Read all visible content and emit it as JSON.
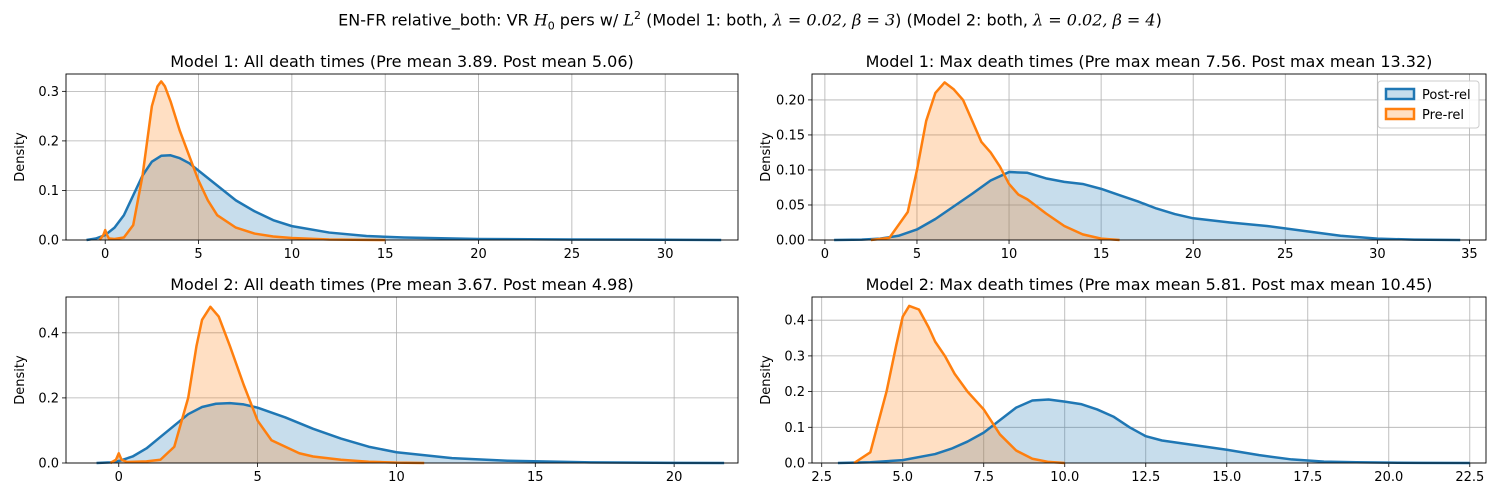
{
  "figure": {
    "suptitle_prefix": "EN-FR relative_both: VR ",
    "suptitle_h": "H",
    "suptitle_h_sub": "0",
    "suptitle_mid": " pers w/ ",
    "suptitle_l": "L",
    "suptitle_l_sup": "2",
    "suptitle_m1": " (Model 1: both, ",
    "suptitle_lambda1": "λ = 0.02, β = 3",
    "suptitle_m2": ") (Model 2: both, ",
    "suptitle_lambda2": "λ = 0.02, β = 4",
    "suptitle_end": ")"
  },
  "colors": {
    "post": "#1f77b4",
    "pre": "#ff7f0e",
    "grid": "#b0b0b0"
  },
  "chart_data": [
    {
      "type": "area",
      "title": "Model 1: All death times (Pre mean 3.89. Post mean 5.06)",
      "xlabel": "",
      "ylabel": "Density",
      "xlim": [
        -2.1,
        33.9
      ],
      "ylim": [
        0,
        0.335
      ],
      "xticks": [
        0,
        5,
        10,
        15,
        20,
        25,
        30
      ],
      "xtick_labels": [
        "0",
        "5",
        "10",
        "15",
        "20",
        "25",
        "30"
      ],
      "yticks": [
        0,
        0.1,
        0.2,
        0.3
      ],
      "ytick_labels": [
        "0.0",
        "0.1",
        "0.2",
        "0.3"
      ],
      "grid": true,
      "legend": false,
      "series": [
        {
          "name": "Post-rel",
          "color": "#1f77b4",
          "x": [
            -1,
            -0.5,
            0,
            0.5,
            1,
            1.5,
            2,
            2.5,
            3,
            3.5,
            4,
            4.5,
            5,
            6,
            7,
            8,
            9,
            10,
            12,
            14,
            16,
            20,
            25,
            30,
            33
          ],
          "y": [
            0,
            0.003,
            0.01,
            0.025,
            0.05,
            0.09,
            0.13,
            0.158,
            0.17,
            0.171,
            0.165,
            0.155,
            0.14,
            0.11,
            0.08,
            0.058,
            0.04,
            0.028,
            0.015,
            0.008,
            0.005,
            0.002,
            0.001,
            0.0005,
            0
          ]
        },
        {
          "name": "Pre-rel",
          "color": "#ff7f0e",
          "x": [
            -0.3,
            -0.1,
            0,
            0.1,
            0.2,
            0.5,
            1,
            1.5,
            2,
            2.5,
            2.8,
            3,
            3.2,
            3.5,
            4,
            4.5,
            5,
            5.5,
            6,
            7,
            8,
            9,
            10,
            12,
            14,
            15
          ],
          "y": [
            0,
            0.01,
            0.02,
            0.01,
            0.003,
            0.002,
            0.005,
            0.03,
            0.13,
            0.27,
            0.31,
            0.32,
            0.31,
            0.28,
            0.22,
            0.17,
            0.12,
            0.08,
            0.05,
            0.025,
            0.013,
            0.007,
            0.004,
            0.001,
            0.0003,
            0
          ]
        }
      ]
    },
    {
      "type": "area",
      "title": "Model 1: Max death times (Pre max mean 7.56. Post max mean 13.32)",
      "xlabel": "",
      "ylabel": "Density",
      "xlim": [
        -0.7,
        35.9
      ],
      "ylim": [
        0,
        0.237
      ],
      "xticks": [
        0,
        5,
        10,
        15,
        20,
        25,
        30,
        35
      ],
      "xtick_labels": [
        "0",
        "5",
        "10",
        "15",
        "20",
        "25",
        "30",
        "35"
      ],
      "yticks": [
        0,
        0.05,
        0.1,
        0.15,
        0.2
      ],
      "ytick_labels": [
        "0.00",
        "0.05",
        "0.10",
        "0.15",
        "0.20"
      ],
      "grid": true,
      "legend": true,
      "legend_loc": "upper right",
      "legend_labels": [
        "Post-rel",
        "Pre-rel"
      ],
      "series": [
        {
          "name": "Post-rel",
          "color": "#1f77b4",
          "x": [
            0.5,
            2,
            3,
            4,
            5,
            6,
            7,
            8,
            9,
            10,
            11,
            12,
            13,
            14,
            15,
            16,
            17,
            18,
            19,
            20,
            22,
            24,
            26,
            28,
            30,
            32,
            34.5
          ],
          "y": [
            0,
            0.0005,
            0.002,
            0.006,
            0.015,
            0.03,
            0.048,
            0.066,
            0.085,
            0.097,
            0.096,
            0.088,
            0.083,
            0.08,
            0.073,
            0.064,
            0.055,
            0.045,
            0.037,
            0.031,
            0.025,
            0.02,
            0.013,
            0.006,
            0.002,
            0.0005,
            0
          ]
        },
        {
          "name": "Pre-rel",
          "color": "#ff7f0e",
          "x": [
            2.5,
            3.5,
            4.5,
            5,
            5.5,
            6,
            6.5,
            7,
            7.5,
            8,
            8.5,
            9,
            9.5,
            10,
            10.5,
            11,
            11.5,
            12,
            13,
            14,
            15,
            16
          ],
          "y": [
            0,
            0.003,
            0.04,
            0.1,
            0.17,
            0.21,
            0.225,
            0.215,
            0.2,
            0.17,
            0.14,
            0.125,
            0.105,
            0.08,
            0.065,
            0.058,
            0.048,
            0.038,
            0.02,
            0.008,
            0.002,
            0
          ]
        }
      ]
    },
    {
      "type": "area",
      "title": "Model 2: All death times (Pre mean 3.67. Post mean 4.98)",
      "xlabel": "",
      "ylabel": "Density",
      "xlim": [
        -1.9,
        22.3
      ],
      "ylim": [
        0,
        0.51
      ],
      "xticks": [
        0,
        5,
        10,
        15,
        20
      ],
      "xtick_labels": [
        "0",
        "5",
        "10",
        "15",
        "20"
      ],
      "yticks": [
        0,
        0.2,
        0.4
      ],
      "ytick_labels": [
        "0.0",
        "0.2",
        "0.4"
      ],
      "grid": true,
      "legend": false,
      "series": [
        {
          "name": "Post-rel",
          "color": "#1f77b4",
          "x": [
            -0.8,
            -0.3,
            0,
            0.5,
            1,
            1.5,
            2,
            2.5,
            3,
            3.5,
            4,
            4.5,
            5,
            6,
            7,
            8,
            9,
            10,
            12,
            14,
            17,
            20,
            21.8
          ],
          "y": [
            0,
            0.002,
            0.006,
            0.02,
            0.045,
            0.08,
            0.115,
            0.15,
            0.172,
            0.182,
            0.184,
            0.18,
            0.17,
            0.14,
            0.105,
            0.075,
            0.05,
            0.033,
            0.015,
            0.007,
            0.002,
            0.0005,
            0
          ]
        },
        {
          "name": "Pre-rel",
          "color": "#ff7f0e",
          "x": [
            -0.3,
            -0.1,
            0,
            0.1,
            0.3,
            1,
            1.5,
            2,
            2.5,
            2.8,
            3,
            3.3,
            3.6,
            4,
            4.5,
            5,
            5.5,
            6,
            6.5,
            7,
            8,
            9,
            10,
            11
          ],
          "y": [
            0,
            0.01,
            0.03,
            0.01,
            0.003,
            0.005,
            0.01,
            0.05,
            0.2,
            0.36,
            0.44,
            0.48,
            0.45,
            0.36,
            0.24,
            0.13,
            0.07,
            0.05,
            0.03,
            0.02,
            0.01,
            0.004,
            0.001,
            0
          ]
        }
      ]
    },
    {
      "type": "area",
      "title": "Model 2: Max death times (Pre max mean 5.81. Post max mean 10.45)",
      "xlabel": "",
      "ylabel": "Density",
      "xlim": [
        2.2,
        23.0
      ],
      "ylim": [
        0,
        0.465
      ],
      "xticks": [
        2.5,
        5,
        7.5,
        10,
        12.5,
        15,
        17.5,
        20,
        22.5
      ],
      "xtick_labels": [
        "2.5",
        "5.0",
        "7.5",
        "10.0",
        "12.5",
        "15.0",
        "17.5",
        "20.0",
        "22.5"
      ],
      "yticks": [
        0,
        0.1,
        0.2,
        0.3,
        0.4
      ],
      "ytick_labels": [
        "0.0",
        "0.1",
        "0.2",
        "0.3",
        "0.4"
      ],
      "grid": true,
      "legend": false,
      "series": [
        {
          "name": "Post-rel",
          "color": "#1f77b4",
          "x": [
            3,
            4,
            5,
            6,
            6.5,
            7,
            7.5,
            8,
            8.5,
            9,
            9.5,
            10,
            10.5,
            11,
            11.5,
            12,
            12.5,
            13,
            14,
            15,
            16,
            17,
            18,
            19,
            20,
            21,
            22.5
          ],
          "y": [
            0,
            0.002,
            0.008,
            0.025,
            0.04,
            0.06,
            0.085,
            0.12,
            0.155,
            0.175,
            0.178,
            0.172,
            0.165,
            0.15,
            0.13,
            0.1,
            0.075,
            0.063,
            0.05,
            0.037,
            0.022,
            0.01,
            0.004,
            0.002,
            0.001,
            0.0003,
            0
          ]
        },
        {
          "name": "Pre-rel",
          "color": "#ff7f0e",
          "x": [
            3.5,
            4,
            4.5,
            4.8,
            5,
            5.2,
            5.5,
            5.8,
            6,
            6.3,
            6.6,
            7,
            7.5,
            8,
            8.5,
            9,
            9.5,
            10
          ],
          "y": [
            0,
            0.03,
            0.2,
            0.33,
            0.41,
            0.44,
            0.43,
            0.38,
            0.34,
            0.3,
            0.25,
            0.2,
            0.15,
            0.08,
            0.035,
            0.012,
            0.003,
            0
          ]
        }
      ]
    }
  ]
}
